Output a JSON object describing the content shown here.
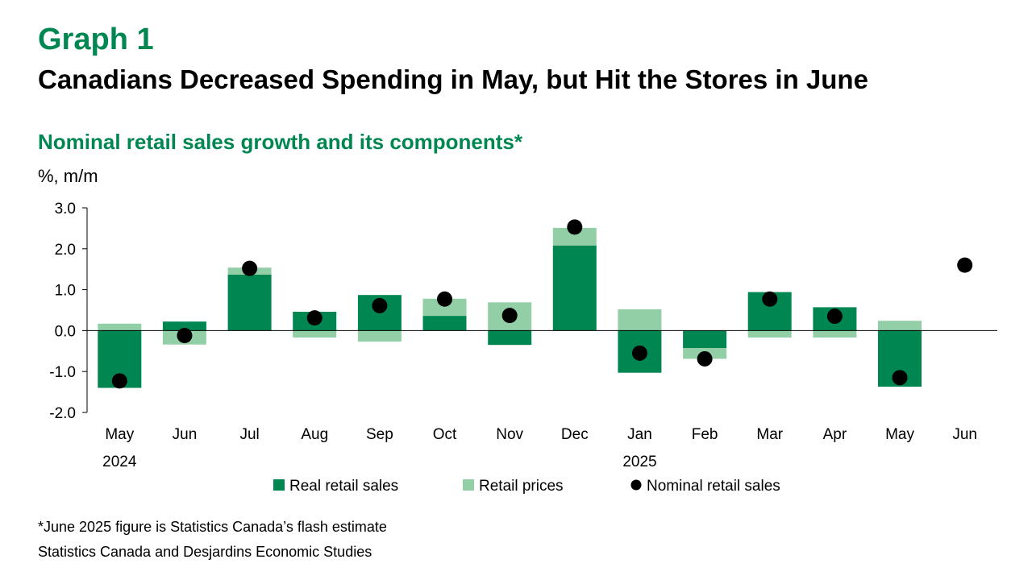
{
  "header": {
    "graph_label": "Graph 1",
    "title": "Canadians Decreased Spending in May, but Hit the Stores in June"
  },
  "chart_data": {
    "type": "bar",
    "subtitle": "Nominal retail sales growth and its components*",
    "unit": "%, m/m",
    "categories": [
      "May",
      "Jun",
      "Jul",
      "Aug",
      "Sep",
      "Oct",
      "Nov",
      "Dec",
      "Jan",
      "Feb",
      "Mar",
      "Apr",
      "May",
      "Jun"
    ],
    "year_labels": [
      {
        "index": 0,
        "label": "2024"
      },
      {
        "index": 8,
        "label": "2025"
      }
    ],
    "ylim": [
      -2.0,
      3.0
    ],
    "yticks": [
      3.0,
      2.0,
      1.0,
      0.0,
      -1.0,
      -2.0
    ],
    "ytick_labels": [
      "3.0",
      "2.0",
      "1.0",
      "0.0",
      "-1.0",
      "-2.0"
    ],
    "series": [
      {
        "name": "Real retail sales",
        "kind": "stacked-bar",
        "color": "#008751",
        "values": [
          -1.4,
          0.22,
          1.37,
          0.46,
          0.87,
          0.36,
          -0.35,
          2.08,
          -1.03,
          -0.43,
          0.94,
          0.57,
          -1.37,
          null
        ]
      },
      {
        "name": "Retail prices",
        "kind": "stacked-bar",
        "color": "#93cfa6",
        "values": [
          0.17,
          -0.34,
          0.17,
          -0.17,
          -0.27,
          0.42,
          0.69,
          0.43,
          0.52,
          -0.26,
          -0.17,
          -0.17,
          0.24,
          null
        ]
      },
      {
        "name": "Nominal retail sales",
        "kind": "marker",
        "color": "#000000",
        "values": [
          -1.23,
          -0.12,
          1.52,
          0.31,
          0.61,
          0.77,
          0.37,
          2.53,
          -0.55,
          -0.69,
          0.77,
          0.35,
          -1.15,
          1.6
        ]
      }
    ],
    "legend_position": "bottom",
    "grid": false
  },
  "footer": {
    "footnote": "*June 2025 figure is Statistics Canada’s flash estimate",
    "source": "Statistics Canada and Desjardins Economic Studies"
  }
}
